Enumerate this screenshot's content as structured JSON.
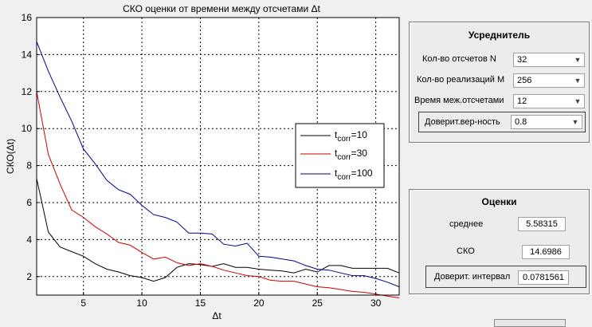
{
  "plot": {
    "title": "СКО оценки от времени между отсчетами Δt",
    "xlabel": "Δt",
    "ylabel": "СКО(Δt)"
  },
  "chart_data": {
    "type": "line",
    "title": "СКО оценки от времени между отсчетами Δt",
    "xlabel": "Δt",
    "ylabel": "СКО(Δt)",
    "xlim": [
      1,
      32
    ],
    "ylim": [
      1,
      16
    ],
    "xticks": [
      5,
      10,
      15,
      20,
      25,
      30
    ],
    "yticks": [
      2,
      4,
      6,
      8,
      10,
      12,
      14,
      16
    ],
    "grid": true,
    "legend_position": "center-right",
    "x": [
      1,
      2,
      3,
      4,
      5,
      6,
      7,
      8,
      9,
      10,
      11,
      12,
      13,
      14,
      15,
      16,
      17,
      18,
      19,
      20,
      21,
      22,
      23,
      24,
      25,
      26,
      27,
      28,
      29,
      30,
      31,
      32
    ],
    "series": [
      {
        "name_base": "t",
        "name_sub": "corr",
        "name_tail": "=10",
        "color": "#000000",
        "values": [
          7.3,
          4.4,
          3.6,
          3.35,
          3.1,
          2.7,
          2.4,
          2.25,
          2.05,
          1.95,
          1.75,
          1.95,
          2.5,
          2.7,
          2.65,
          2.55,
          2.7,
          2.5,
          2.5,
          2.4,
          2.35,
          2.3,
          2.2,
          2.4,
          2.25,
          2.6,
          2.6,
          2.45,
          2.45,
          2.45,
          2.45,
          2.2
        ]
      },
      {
        "name_base": "t",
        "name_sub": "corr",
        "name_tail": "=30",
        "color": "#cc0000",
        "values": [
          12.0,
          8.6,
          7.0,
          5.6,
          5.2,
          4.7,
          4.3,
          3.85,
          3.7,
          3.3,
          2.95,
          3.05,
          2.75,
          2.6,
          2.7,
          2.55,
          2.35,
          2.2,
          2.05,
          2.0,
          1.8,
          1.75,
          1.75,
          1.6,
          1.45,
          1.4,
          1.3,
          1.2,
          1.15,
          1.05,
          0.95,
          0.85
        ]
      },
      {
        "name_base": "t",
        "name_sub": "corr",
        "name_tail": "=100",
        "color": "#00008b",
        "values": [
          14.7,
          13.1,
          11.7,
          10.4,
          8.9,
          8.1,
          7.2,
          6.7,
          6.45,
          5.85,
          5.35,
          5.2,
          4.95,
          4.35,
          4.35,
          4.3,
          3.75,
          3.65,
          3.8,
          3.1,
          3.05,
          2.95,
          2.85,
          2.6,
          2.4,
          2.35,
          2.2,
          2.05,
          2.05,
          1.9,
          1.7,
          1.45
        ]
      }
    ]
  },
  "averager": {
    "title": "Усреднитель",
    "rows": [
      {
        "label": "Кол-во отсчетов N",
        "value": "32"
      },
      {
        "label": "Кол-во реализаций М",
        "value": "256"
      },
      {
        "label": "Время меж.отсчетами",
        "value": "12"
      },
      {
        "label": "Доверит.вер-ность",
        "value": "0.8"
      }
    ]
  },
  "estimates": {
    "title": "Оценки",
    "mean_label": "среднее",
    "mean_value": "5.58315",
    "sko_label": "СКО",
    "sko_value": "14.6986",
    "ci_label": "Доверит. интервал",
    "ci_value": "0.0781561"
  }
}
